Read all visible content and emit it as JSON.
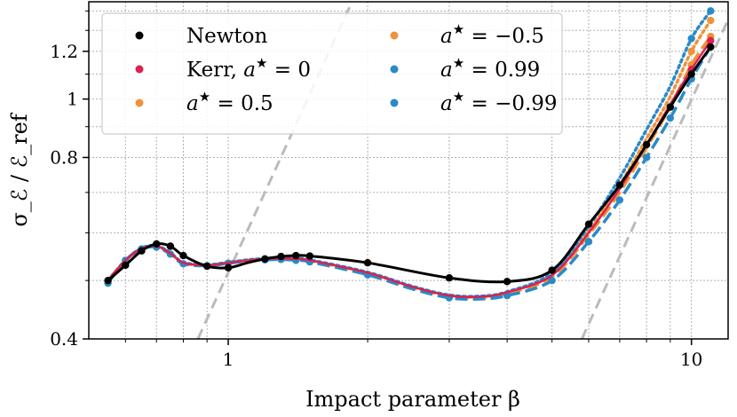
{
  "chart_data": {
    "type": "line",
    "xlabel": "Impact parameter β",
    "ylabel": "σ_ℰ / ℰ_ref",
    "xscale": "log",
    "yscale": "log",
    "xlim": [
      0.5,
      12
    ],
    "ylim": [
      0.4,
      1.45
    ],
    "x_ticks_major": [
      1,
      10
    ],
    "x_tick_labels": [
      "1",
      "10"
    ],
    "x_ticks_minor": [
      0.6,
      0.7,
      0.8,
      0.9,
      2,
      3,
      4,
      5,
      6,
      7,
      8,
      9
    ],
    "y_ticks_major": [
      0.4,
      0.8,
      1.0,
      1.2
    ],
    "y_tick_labels": [
      "0.4",
      "0.8",
      "1",
      "1.2"
    ],
    "y_ticks_minor": [
      0.5,
      0.6,
      0.7,
      0.9,
      1.1,
      1.3,
      1.4
    ],
    "grid": true,
    "legend_position": "top-left",
    "reference_lines": [
      {
        "name": "low-beta-asymptote",
        "color": "#bbbbbb",
        "style": "dashed",
        "x": [
          0.86,
          1.85
        ],
        "y": [
          0.4,
          1.45
        ]
      },
      {
        "name": "high-beta-asymptote",
        "color": "#bbbbbb",
        "style": "dashed",
        "x": [
          5.8,
          12.5
        ],
        "y": [
          0.4,
          1.45
        ]
      }
    ],
    "series": [
      {
        "name": "Newton",
        "label_pre": "Newton",
        "label_sup": "",
        "label_post": "",
        "color": "#000000",
        "line_style": "solid",
        "x": [
          0.55,
          0.6,
          0.65,
          0.7,
          0.75,
          0.8,
          0.9,
          1.0,
          1.1,
          1.2,
          1.3,
          1.4,
          1.5,
          2,
          3,
          4,
          5,
          6,
          7,
          8,
          9,
          10,
          11
        ],
        "y": [
          0.5,
          0.53,
          0.56,
          0.575,
          0.57,
          0.55,
          0.528,
          0.525,
          0.535,
          0.543,
          0.548,
          0.55,
          0.549,
          0.535,
          0.505,
          0.498,
          0.52,
          0.62,
          0.72,
          0.84,
          0.97,
          1.1,
          1.22
        ],
        "markers": [
          0.55,
          0.6,
          0.65,
          0.7,
          0.75,
          0.8,
          0.9,
          1.0,
          1.2,
          1.3,
          1.4,
          1.5,
          2,
          3,
          4,
          5,
          6,
          7,
          8,
          9,
          10,
          11
        ]
      },
      {
        "name": "Kerr, a* = 0",
        "label_pre": "Kerr, ",
        "label_sup": "",
        "label_post": " = 0",
        "color": "#dc2050",
        "line_style": "solid",
        "x": [
          0.55,
          0.6,
          0.65,
          0.7,
          0.75,
          0.8,
          0.9,
          1.0,
          1.1,
          1.2,
          1.3,
          1.4,
          1.5,
          2,
          2.5,
          3,
          3.5,
          4,
          5,
          6,
          7,
          8,
          9,
          10,
          11
        ],
        "y": [
          0.5,
          0.54,
          0.565,
          0.57,
          0.555,
          0.535,
          0.53,
          0.535,
          0.54,
          0.543,
          0.544,
          0.543,
          0.54,
          0.515,
          0.488,
          0.472,
          0.47,
          0.478,
          0.51,
          0.6,
          0.71,
          0.84,
          0.98,
          1.12,
          1.25
        ],
        "markers": [
          10,
          11
        ]
      },
      {
        "name": "a* = 0.5",
        "label_pre": "",
        "label_sup": "",
        "label_post": " = 0.5",
        "color": "#f0923a",
        "line_style": "dashed",
        "x": [
          0.55,
          0.6,
          0.65,
          0.7,
          0.75,
          0.8,
          0.9,
          1.0,
          1.1,
          1.2,
          1.3,
          1.4,
          1.5,
          2,
          2.5,
          3,
          3.5,
          4,
          5,
          6,
          7,
          8,
          9,
          10,
          11
        ],
        "y": [
          0.5,
          0.54,
          0.565,
          0.57,
          0.555,
          0.535,
          0.53,
          0.535,
          0.54,
          0.542,
          0.543,
          0.542,
          0.539,
          0.514,
          0.487,
          0.471,
          0.469,
          0.476,
          0.507,
          0.595,
          0.7,
          0.83,
          0.97,
          1.14,
          1.27
        ],
        "markers": [
          10,
          11
        ]
      },
      {
        "name": "a* = -0.5",
        "label_pre": "",
        "label_sup": "",
        "label_post": " = −0.5",
        "color": "#f0923a",
        "line_style": "dotted",
        "x": [
          0.55,
          0.6,
          0.65,
          0.7,
          0.75,
          0.8,
          0.9,
          1.0,
          1.1,
          1.2,
          1.3,
          1.4,
          1.5,
          2,
          2.5,
          3,
          3.5,
          4,
          5,
          6,
          7,
          8,
          9,
          10,
          11
        ],
        "y": [
          0.5,
          0.54,
          0.565,
          0.57,
          0.555,
          0.535,
          0.53,
          0.535,
          0.54,
          0.543,
          0.544,
          0.543,
          0.54,
          0.515,
          0.488,
          0.472,
          0.47,
          0.478,
          0.512,
          0.605,
          0.72,
          0.86,
          1.01,
          1.2,
          1.35
        ],
        "markers": [
          10,
          11
        ]
      },
      {
        "name": "a* = 0.99",
        "label_pre": "",
        "label_sup": "",
        "label_post": " = 0.99",
        "color": "#2a8ac8",
        "line_style": "dashed",
        "x": [
          0.55,
          0.6,
          0.65,
          0.7,
          0.75,
          0.8,
          0.9,
          1.0,
          1.1,
          1.2,
          1.3,
          1.4,
          1.5,
          2,
          2.5,
          3,
          3.5,
          4,
          5,
          6,
          7,
          8,
          9,
          10,
          11
        ],
        "y": [
          0.495,
          0.54,
          0.564,
          0.568,
          0.553,
          0.533,
          0.529,
          0.534,
          0.539,
          0.541,
          0.542,
          0.54,
          0.537,
          0.511,
          0.484,
          0.468,
          0.466,
          0.472,
          0.5,
          0.58,
          0.68,
          0.8,
          0.93,
          1.08,
          1.22
        ],
        "markers": [
          0.55,
          0.6,
          0.65,
          0.7,
          0.75,
          0.8,
          0.9,
          1.0,
          1.2,
          1.3,
          1.4,
          1.5,
          2,
          3,
          4,
          5,
          6,
          7,
          8,
          9,
          10,
          11
        ]
      },
      {
        "name": "a* = -0.99",
        "label_pre": "",
        "label_sup": "",
        "label_post": " = −0.99",
        "color": "#2a8ac8",
        "line_style": "dotted",
        "x": [
          0.55,
          0.6,
          0.65,
          0.7,
          0.75,
          0.8,
          0.9,
          1.0,
          1.1,
          1.2,
          1.3,
          1.4,
          1.5,
          2,
          2.5,
          3,
          3.5,
          4,
          5,
          6,
          7,
          8,
          9,
          10,
          11
        ],
        "y": [
          0.5,
          0.54,
          0.566,
          0.571,
          0.556,
          0.536,
          0.531,
          0.536,
          0.541,
          0.544,
          0.545,
          0.544,
          0.541,
          0.516,
          0.489,
          0.473,
          0.471,
          0.479,
          0.515,
          0.615,
          0.74,
          0.89,
          1.05,
          1.26,
          1.4
        ],
        "markers": [
          10,
          11
        ]
      }
    ]
  }
}
